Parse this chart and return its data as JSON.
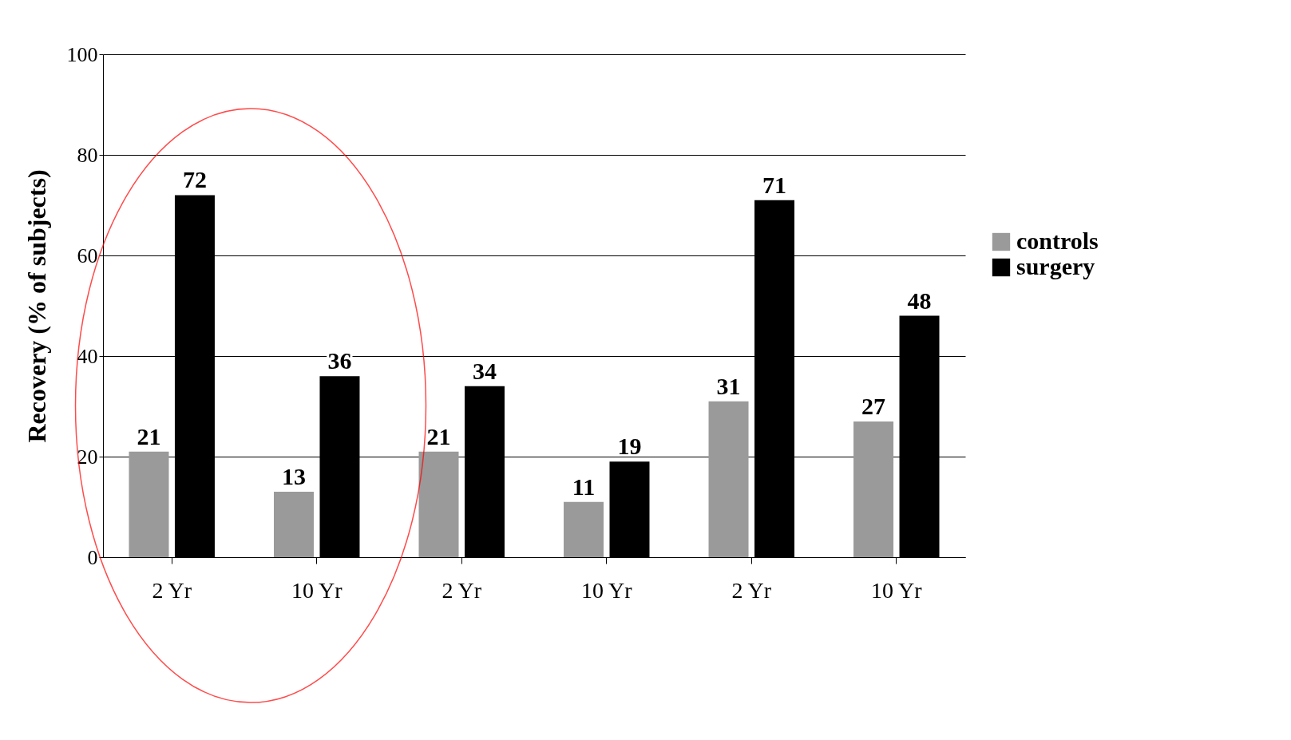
{
  "chart_data": {
    "type": "bar",
    "ylabel": "Recovery (% of subjects)",
    "categories": [
      "2 Yr",
      "10 Yr",
      "2 Yr",
      "10 Yr",
      "2 Yr",
      "10 Yr"
    ],
    "series": [
      {
        "name": "controls",
        "color": "#9a9a9a",
        "values": [
          21,
          13,
          21,
          11,
          31,
          27
        ]
      },
      {
        "name": "surgery",
        "color": "#000000",
        "values": [
          72,
          36,
          34,
          19,
          71,
          48
        ]
      }
    ],
    "ylim": [
      0,
      100
    ],
    "yticks": [
      0,
      20,
      40,
      60,
      80,
      100
    ],
    "grid": "y",
    "legend": "right",
    "data_labels": true
  }
}
